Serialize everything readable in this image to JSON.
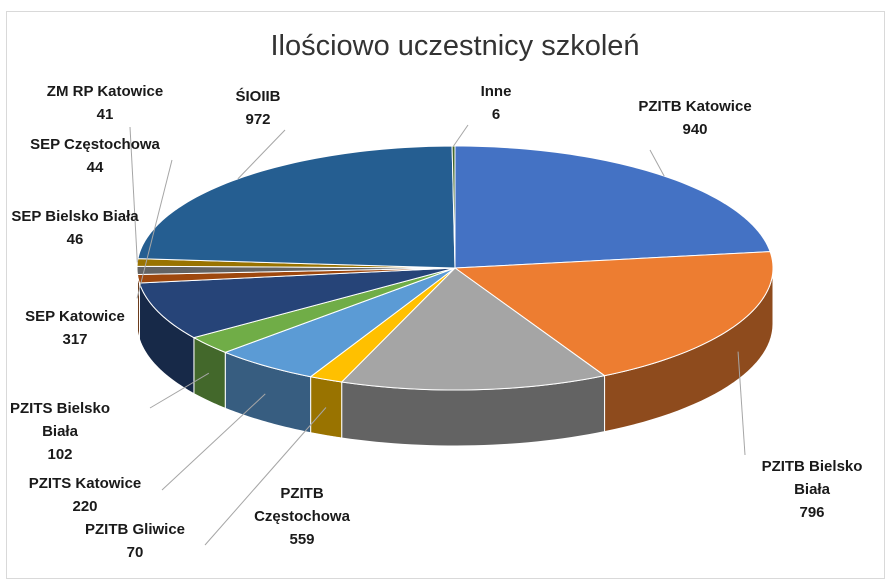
{
  "chart_data": {
    "type": "pie",
    "title": "Ilościowo uczestnicy szkoleń",
    "categories": [
      "PZITB Katowice",
      "PZITB Bielsko Biała",
      "PZITB Częstochowa",
      "PZITB Gliwice",
      "PZITS Katowice",
      "PZITS Bielsko Biała",
      "SEP Katowice",
      "SEP Bielsko Biała",
      "SEP Częstochowa",
      "ZM RP Katowice",
      "ŚIOIIB",
      "Inne"
    ],
    "values": [
      940,
      796,
      559,
      70,
      220,
      102,
      317,
      46,
      44,
      41,
      972,
      6
    ],
    "colors": [
      "#4472c4",
      "#ed7d31",
      "#a5a5a5",
      "#ffc000",
      "#5b9bd5",
      "#70ad47",
      "#264478",
      "#9e480e",
      "#636363",
      "#997300",
      "#255e91",
      "#43682b"
    ]
  }
}
